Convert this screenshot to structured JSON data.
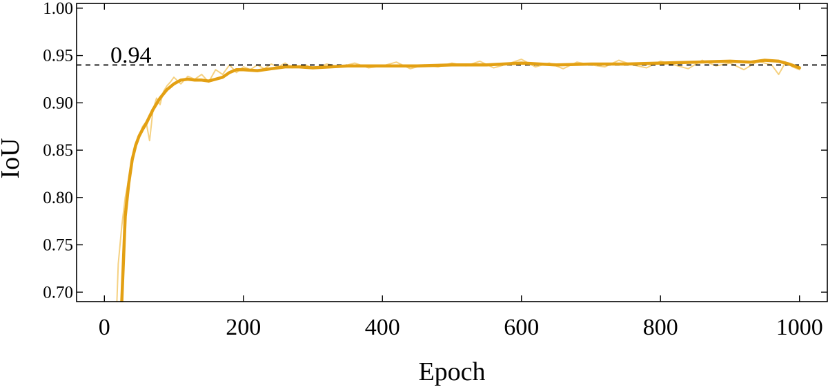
{
  "chart_data": {
    "type": "line",
    "xlabel": "Epoch",
    "ylabel": "IoU",
    "xlim": [
      -40,
      1040
    ],
    "ylim": [
      0.69,
      1.005
    ],
    "xticks": [
      0,
      200,
      400,
      600,
      800,
      1000
    ],
    "xtick_labels": [
      "0",
      "200",
      "400",
      "600",
      "800",
      "1000"
    ],
    "yticks": [
      0.7,
      0.75,
      0.8,
      0.85,
      0.9,
      0.95,
      1.0
    ],
    "ytick_labels": [
      "0.70",
      "0.75",
      "0.80",
      "0.85",
      "0.90",
      "0.95",
      "1.00"
    ],
    "grid": false,
    "reference_line": {
      "y": 0.94,
      "label": "0.94",
      "style": "dashed",
      "color": "#000000"
    },
    "series": [
      {
        "role": "raw",
        "color": "#f3c96b",
        "x": [
          18,
          20,
          25,
          30,
          35,
          40,
          45,
          50,
          55,
          60,
          65,
          70,
          75,
          80,
          85,
          90,
          95,
          100,
          110,
          120,
          130,
          140,
          150,
          160,
          170,
          180,
          190,
          200,
          210,
          220,
          230,
          240,
          250,
          260,
          270,
          280,
          290,
          300,
          320,
          340,
          360,
          380,
          400,
          420,
          440,
          460,
          480,
          500,
          520,
          540,
          560,
          580,
          600,
          620,
          640,
          660,
          680,
          700,
          720,
          740,
          760,
          780,
          800,
          820,
          840,
          860,
          880,
          900,
          920,
          940,
          960,
          970,
          980,
          990,
          1000
        ],
        "y": [
          0.69,
          0.73,
          0.77,
          0.8,
          0.82,
          0.84,
          0.855,
          0.865,
          0.875,
          0.88,
          0.86,
          0.893,
          0.905,
          0.898,
          0.912,
          0.918,
          0.922,
          0.927,
          0.92,
          0.928,
          0.925,
          0.93,
          0.922,
          0.935,
          0.93,
          0.94,
          0.932,
          0.938,
          0.935,
          0.94,
          0.936,
          0.941,
          0.938,
          0.942,
          0.937,
          0.939,
          0.94,
          0.936,
          0.941,
          0.938,
          0.942,
          0.937,
          0.939,
          0.943,
          0.936,
          0.94,
          0.938,
          0.942,
          0.939,
          0.944,
          0.937,
          0.941,
          0.946,
          0.938,
          0.942,
          0.936,
          0.943,
          0.94,
          0.938,
          0.945,
          0.94,
          0.937,
          0.944,
          0.94,
          0.936,
          0.945,
          0.939,
          0.942,
          0.935,
          0.944,
          0.94,
          0.93,
          0.943,
          0.938,
          0.935
        ]
      },
      {
        "role": "smoothed",
        "color": "#e3a013",
        "x": [
          25,
          30,
          35,
          40,
          45,
          50,
          55,
          60,
          70,
          80,
          90,
          100,
          110,
          120,
          130,
          140,
          150,
          160,
          170,
          180,
          190,
          200,
          220,
          240,
          260,
          280,
          300,
          350,
          400,
          450,
          500,
          550,
          600,
          650,
          700,
          750,
          800,
          850,
          900,
          930,
          950,
          970,
          985,
          1000
        ],
        "y": [
          0.69,
          0.78,
          0.815,
          0.84,
          0.855,
          0.865,
          0.872,
          0.878,
          0.893,
          0.905,
          0.914,
          0.92,
          0.924,
          0.925,
          0.924,
          0.924,
          0.923,
          0.925,
          0.927,
          0.932,
          0.935,
          0.935,
          0.934,
          0.936,
          0.938,
          0.938,
          0.937,
          0.939,
          0.939,
          0.939,
          0.94,
          0.94,
          0.942,
          0.94,
          0.941,
          0.941,
          0.942,
          0.943,
          0.944,
          0.943,
          0.945,
          0.944,
          0.941,
          0.937
        ]
      }
    ]
  }
}
